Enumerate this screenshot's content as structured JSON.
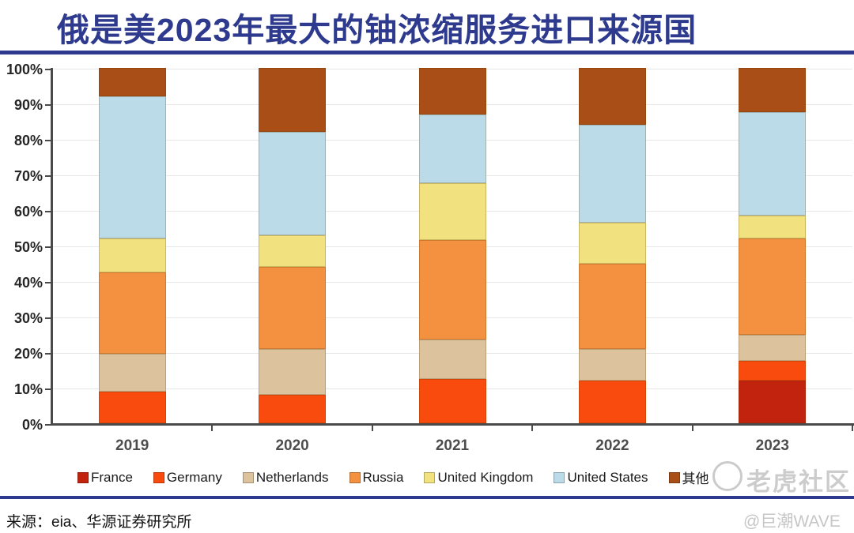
{
  "title": "俄是美2023年最大的铀浓缩服务进口来源国",
  "accent_color": "#2E3A8D",
  "chart_data": {
    "type": "bar",
    "subtype": "100%-stacked-column",
    "title": "俄是美2023年最大的铀浓缩服务进口来源国",
    "categories": [
      "2019",
      "2020",
      "2021",
      "2022",
      "2023"
    ],
    "series": [
      {
        "name": "France",
        "color": "#C2230E",
        "values": [
          0,
          0,
          0,
          0,
          12
        ]
      },
      {
        "name": "Germany",
        "color": "#FA4B0E",
        "values": [
          9,
          8,
          12.5,
          12,
          5.5
        ]
      },
      {
        "name": "Netherlands",
        "color": "#DCC39E",
        "values": [
          10.5,
          13,
          11,
          9,
          7.5
        ]
      },
      {
        "name": "Russia",
        "color": "#F39140",
        "values": [
          23,
          23,
          28,
          24,
          27
        ]
      },
      {
        "name": "United Kingdom",
        "color": "#F2E27F",
        "values": [
          9.5,
          9,
          16,
          11.5,
          6.5
        ]
      },
      {
        "name": "United States",
        "color": "#BBDBE9",
        "values": [
          40,
          29,
          19.5,
          27.5,
          29
        ]
      },
      {
        "name": "其他",
        "color": "#A84E16",
        "values": [
          8,
          18,
          13,
          16,
          12.5
        ]
      }
    ],
    "yticks": [
      "0%",
      "10%",
      "20%",
      "30%",
      "40%",
      "50%",
      "60%",
      "70%",
      "80%",
      "90%",
      "100%"
    ],
    "ylim": [
      0,
      100
    ],
    "grid": true,
    "legend_position": "bottom",
    "units": "percent"
  },
  "source_note": "来源：eia、华源证券研究所",
  "watermarks": {
    "community": "老虎社区",
    "handle": "@巨潮WAVE"
  }
}
